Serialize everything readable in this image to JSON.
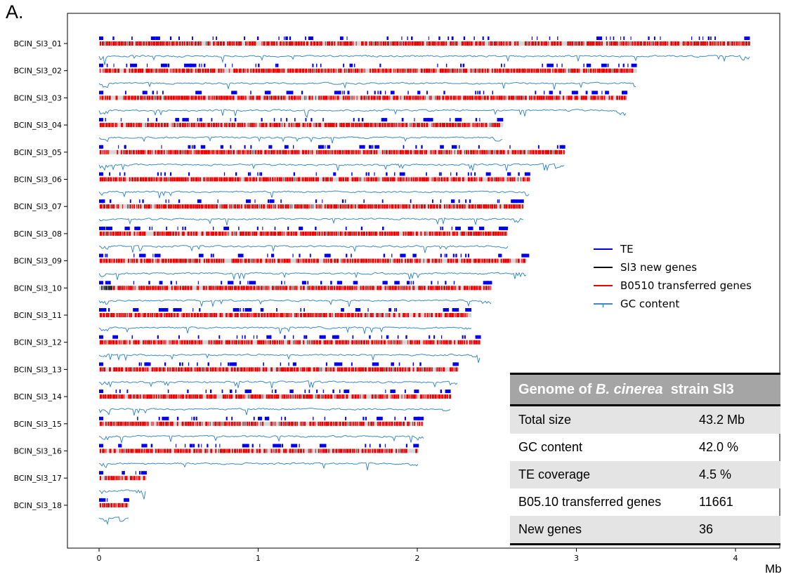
{
  "panel_label": "A.",
  "unit_label": "Mb",
  "colors": {
    "te": "#0000ee",
    "new_genes": "#000000",
    "transferred": "#ee0000",
    "gc": "#3b8bc2",
    "chromosome": "#d6d6d6"
  },
  "chart_data": {
    "type": "genome-track",
    "x_ticks": [
      "0",
      "1",
      "2",
      "3",
      "4"
    ],
    "xlim": [
      -0.2,
      4.3
    ],
    "x_unit": "Mb",
    "legend": {
      "placement": "right",
      "items": [
        {
          "label": "TE",
          "color": "#0000ee",
          "marker": "line"
        },
        {
          "label": "Sl3 new genes",
          "color": "#000000",
          "marker": "line"
        },
        {
          "label": "B0510 transferred genes",
          "color": "#ee0000",
          "marker": "line"
        },
        {
          "label": "GC content",
          "color": "#3b8bc2",
          "marker": "line-tick"
        }
      ]
    },
    "chromosomes": [
      {
        "name": "BCIN_Sl3_01",
        "length_mb": 4.09
      },
      {
        "name": "BCIN_Sl3_02",
        "length_mb": 3.38
      },
      {
        "name": "BCIN_Sl3_03",
        "length_mb": 3.32
      },
      {
        "name": "BCIN_Sl3_04",
        "length_mb": 2.54
      },
      {
        "name": "BCIN_Sl3_05",
        "length_mb": 2.93
      },
      {
        "name": "BCIN_Sl3_06",
        "length_mb": 2.71
      },
      {
        "name": "BCIN_Sl3_07",
        "length_mb": 2.67
      },
      {
        "name": "BCIN_Sl3_08",
        "length_mb": 2.57
      },
      {
        "name": "BCIN_Sl3_09",
        "length_mb": 2.69
      },
      {
        "name": "BCIN_Sl3_10",
        "length_mb": 2.47
      },
      {
        "name": "BCIN_Sl3_11",
        "length_mb": 2.34
      },
      {
        "name": "BCIN_Sl3_12",
        "length_mb": 2.4
      },
      {
        "name": "BCIN_Sl3_13",
        "length_mb": 2.26
      },
      {
        "name": "BCIN_Sl3_14",
        "length_mb": 2.21
      },
      {
        "name": "BCIN_Sl3_15",
        "length_mb": 2.04
      },
      {
        "name": "BCIN_Sl3_16",
        "length_mb": 2.01
      },
      {
        "name": "BCIN_Sl3_17",
        "length_mb": 0.3
      },
      {
        "name": "BCIN_Sl3_18",
        "length_mb": 0.19
      }
    ]
  },
  "table": {
    "header_prefix": "Genome of ",
    "header_species": "B. cinerea",
    "header_suffix": "strain Sl3",
    "rows": [
      {
        "label": "Total size",
        "value": "43.2 Mb"
      },
      {
        "label": "GC content",
        "value": "42.0 %"
      },
      {
        "label": "TE coverage",
        "value": "4.5 %"
      },
      {
        "label": "B05.10 transferred genes",
        "value": "11661"
      },
      {
        "label": "New genes",
        "value": "36"
      }
    ]
  }
}
